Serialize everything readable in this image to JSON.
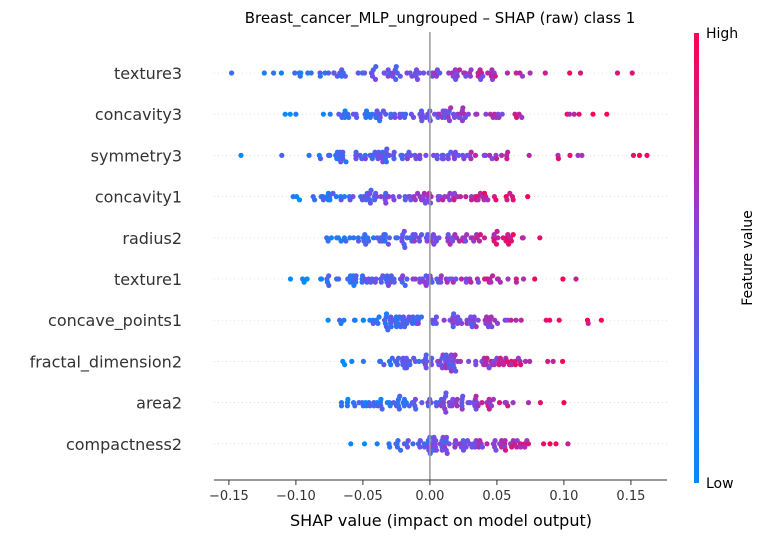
{
  "chart_data": {
    "type": "scatter",
    "subtype": "shap-beeswarm",
    "title": "Breast_cancer_MLP_ungrouped – SHAP (raw) class 1",
    "xlabel": "SHAP value (impact on model output)",
    "xlim": [
      -0.162,
      0.178
    ],
    "xticks": [
      -0.15,
      -0.1,
      -0.05,
      0.0,
      0.05,
      0.1,
      0.15
    ],
    "xtick_labels": [
      "−0.15",
      "−0.10",
      "−0.05",
      "0.00",
      "0.05",
      "0.10",
      "0.15"
    ],
    "colorbar": {
      "label": "Feature value",
      "high": "High",
      "low": "Low",
      "low_color": "#008bfb",
      "high_color": "#ff0052"
    },
    "grid": false,
    "features": [
      {
        "name": "texture3",
        "min": -0.148,
        "max": 0.151,
        "core": [
          -0.09,
          0.06
        ]
      },
      {
        "name": "concavity3",
        "min": -0.108,
        "max": 0.132,
        "core": [
          -0.07,
          0.06
        ]
      },
      {
        "name": "symmetry3",
        "min": -0.141,
        "max": 0.162,
        "core": [
          -0.08,
          0.06
        ]
      },
      {
        "name": "concavity1",
        "min": -0.102,
        "max": 0.073,
        "core": [
          -0.08,
          0.06
        ]
      },
      {
        "name": "radius2",
        "min": -0.077,
        "max": 0.082,
        "core": [
          -0.07,
          0.06
        ]
      },
      {
        "name": "texture1",
        "min": -0.104,
        "max": 0.109,
        "core": [
          -0.08,
          0.06
        ]
      },
      {
        "name": "concave_points1",
        "min": -0.076,
        "max": 0.128,
        "core": [
          -0.05,
          0.06
        ]
      },
      {
        "name": "fractal_dimension2",
        "min": -0.065,
        "max": 0.099,
        "core": [
          -0.03,
          0.07
        ]
      },
      {
        "name": "area2",
        "min": -0.066,
        "max": 0.1,
        "core": [
          -0.06,
          0.05
        ]
      },
      {
        "name": "compactness2",
        "min": -0.059,
        "max": 0.103,
        "core": [
          -0.03,
          0.07
        ]
      }
    ]
  }
}
